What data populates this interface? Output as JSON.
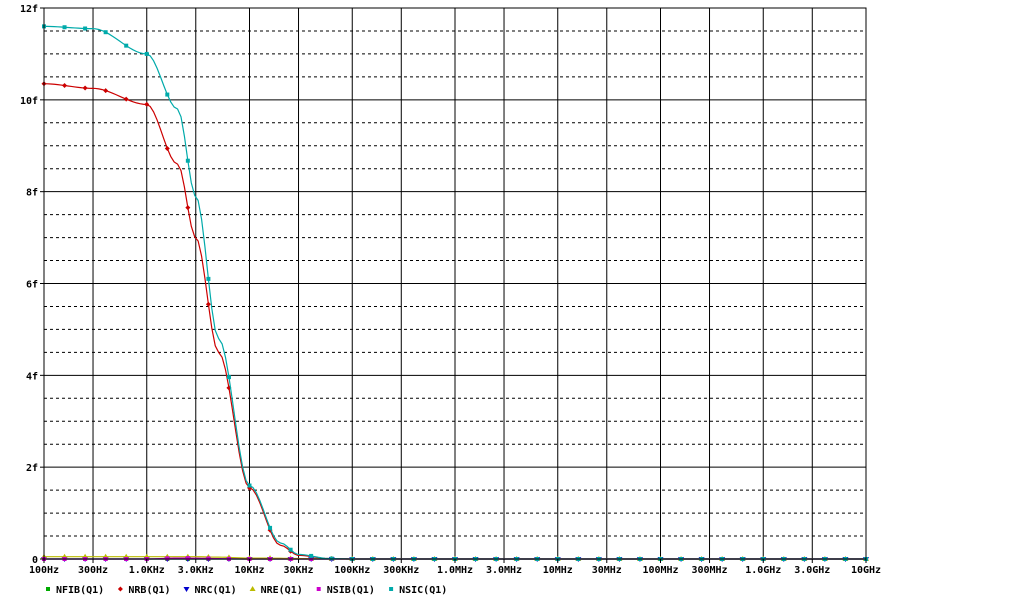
{
  "chart_data": {
    "type": "line",
    "title": "",
    "xlabel": "",
    "ylabel": "",
    "x_scale": "log",
    "xlim": [
      100,
      10000000000
    ],
    "ylim": [
      0,
      12
    ],
    "grid": true,
    "legend_position": "bottom-left",
    "x_tick_values": [
      100,
      300,
      1000,
      3000,
      10000,
      30000,
      100000,
      300000,
      1000000,
      3000000,
      10000000,
      30000000,
      100000000,
      300000000,
      1000000000,
      3000000000,
      10000000000
    ],
    "x_tick_labels": [
      "100Hz",
      "300Hz",
      "1.0KHz",
      "3.0KHz",
      "10KHz",
      "30KHz",
      "100KHz",
      "300KHz",
      "1.0MHz",
      "3.0MHz",
      "10MHz",
      "30MHz",
      "100MHz",
      "300MHz",
      "1.0GHz",
      "3.0GHz",
      "10GHz"
    ],
    "y_tick_values": [
      0,
      2,
      4,
      6,
      8,
      10,
      12
    ],
    "y_tick_labels": [
      "0",
      "2f",
      "4f",
      "6f",
      "8f",
      "10f",
      "12f"
    ],
    "series": [
      {
        "name": "NFIB(Q1)",
        "color": "#00aa00",
        "marker": "square",
        "x": [
          100,
          1000,
          10000,
          100000,
          1000000,
          10000000,
          100000000,
          1000000000,
          10000000000
        ],
        "y": [
          0,
          0,
          0,
          0,
          0,
          0,
          0,
          0,
          0
        ]
      },
      {
        "name": "NRB(Q1)",
        "color": "#cc0000",
        "marker": "diamond",
        "x": [
          100,
          300,
          1000,
          2000,
          3000,
          5000,
          10000,
          20000,
          30000,
          60000,
          100000,
          1000000,
          10000000,
          10000000000
        ],
        "y": [
          10.35,
          10.25,
          9.9,
          8.6,
          7.0,
          4.5,
          1.55,
          0.3,
          0.08,
          0.01,
          0,
          0,
          0,
          0
        ]
      },
      {
        "name": "NRC(Q1)",
        "color": "#0000cc",
        "marker": "triangle-down",
        "x": [
          100,
          1000,
          10000,
          100000,
          1000000,
          10000000,
          100000000,
          1000000000,
          10000000000
        ],
        "y": [
          0,
          0,
          0,
          0,
          0,
          0,
          0,
          0,
          0
        ]
      },
      {
        "name": "NRE(Q1)",
        "color": "#bbbb00",
        "marker": "triangle-up",
        "x": [
          100,
          1000,
          3000,
          5000,
          10000,
          100000,
          1000000,
          10000000000
        ],
        "y": [
          0.05,
          0.05,
          0.05,
          0.04,
          0.02,
          0,
          0,
          0
        ]
      },
      {
        "name": "NSIB(Q1)",
        "color": "#cc00cc",
        "marker": "square",
        "x": [
          100,
          1000,
          2000,
          10000,
          100000,
          1000000,
          10000000,
          10000000000
        ],
        "y": [
          0,
          0,
          0.02,
          0,
          0,
          0,
          0,
          0
        ]
      },
      {
        "name": "NSIC(Q1)",
        "color": "#00aaaa",
        "marker": "square",
        "x": [
          100,
          300,
          1000,
          2000,
          3000,
          5000,
          10000,
          20000,
          30000,
          60000,
          100000,
          1000000,
          10000000,
          10000000000
        ],
        "y": [
          11.6,
          11.55,
          11.0,
          9.8,
          7.9,
          4.8,
          1.6,
          0.35,
          0.1,
          0.01,
          0,
          0,
          0,
          0
        ]
      }
    ]
  }
}
